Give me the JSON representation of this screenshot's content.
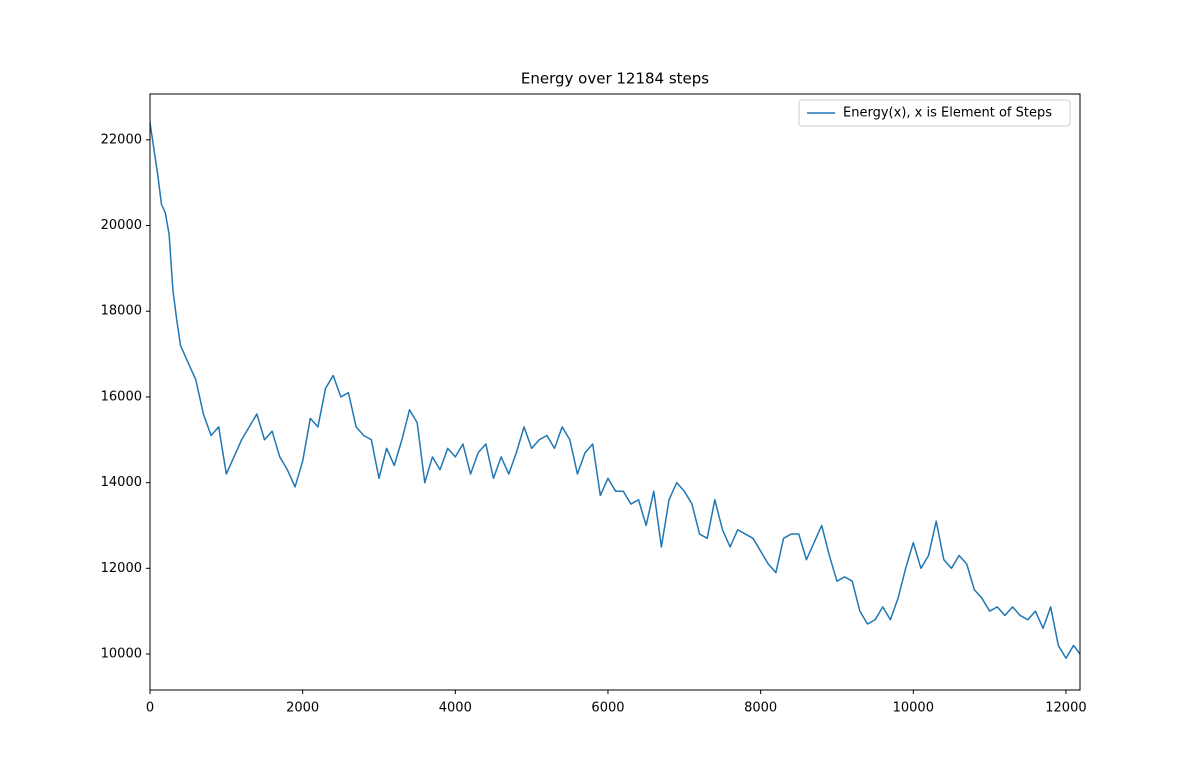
{
  "chart_data": {
    "type": "line",
    "title": "Energy over  12184 steps",
    "x": [
      0,
      100,
      150,
      200,
      250,
      300,
      350,
      400,
      500,
      600,
      700,
      800,
      900,
      1000,
      1100,
      1200,
      1300,
      1400,
      1500,
      1600,
      1700,
      1800,
      1900,
      2000,
      2100,
      2200,
      2300,
      2400,
      2500,
      2600,
      2700,
      2800,
      2900,
      3000,
      3100,
      3200,
      3300,
      3400,
      3500,
      3600,
      3700,
      3800,
      3900,
      4000,
      4100,
      4200,
      4300,
      4400,
      4500,
      4600,
      4700,
      4800,
      4900,
      5000,
      5100,
      5200,
      5300,
      5400,
      5500,
      5600,
      5700,
      5800,
      5900,
      6000,
      6100,
      6200,
      6300,
      6400,
      6500,
      6600,
      6700,
      6800,
      6900,
      7000,
      7100,
      7200,
      7300,
      7400,
      7500,
      7600,
      7700,
      7800,
      7900,
      8000,
      8100,
      8200,
      8300,
      8400,
      8500,
      8600,
      8700,
      8800,
      8900,
      9000,
      9100,
      9200,
      9300,
      9400,
      9500,
      9600,
      9700,
      9800,
      9900,
      10000,
      10100,
      10200,
      10300,
      10400,
      10500,
      10600,
      10700,
      10800,
      10900,
      11000,
      11100,
      11200,
      11300,
      11400,
      11500,
      11600,
      11700,
      11800,
      11900,
      12000,
      12100,
      12184
    ],
    "series": [
      {
        "name": "Energy(x), x is Element of Steps",
        "color": "#1f77b4",
        "values": [
          22400,
          21200,
          20500,
          20300,
          19800,
          18500,
          17800,
          17200,
          16800,
          16400,
          15600,
          15100,
          15300,
          14200,
          14600,
          15000,
          15300,
          15600,
          15000,
          15200,
          14600,
          14300,
          13900,
          14500,
          15500,
          15300,
          16200,
          16500,
          16000,
          16100,
          15300,
          15100,
          15000,
          14100,
          14800,
          14400,
          15000,
          15700,
          15400,
          14000,
          14600,
          14300,
          14800,
          14600,
          14900,
          14200,
          14700,
          14900,
          14100,
          14600,
          14200,
          14700,
          15300,
          14800,
          15000,
          15100,
          14800,
          15300,
          15000,
          14200,
          14700,
          14900,
          13700,
          14100,
          13800,
          13800,
          13500,
          13600,
          13000,
          13800,
          12500,
          13600,
          14000,
          13800,
          13500,
          12800,
          12700,
          13600,
          12900,
          12500,
          12900,
          12800,
          12700,
          12400,
          12100,
          11900,
          12700,
          12800,
          12800,
          12200,
          12600,
          13000,
          12300,
          11700,
          11800,
          11700,
          11000,
          10700,
          10800,
          11100,
          10800,
          11300,
          12000,
          12600,
          12000,
          12300,
          13100,
          12200,
          12000,
          12300,
          12100,
          11500,
          11300,
          11000,
          11100,
          10900,
          11100,
          10900,
          10800,
          11000,
          10600,
          11100,
          10200,
          9900,
          10200,
          10000
        ]
      }
    ],
    "xlim": [
      0,
      12184
    ],
    "ylim": [
      9160,
      23070
    ],
    "xticks": [
      0,
      2000,
      4000,
      6000,
      8000,
      10000,
      12000
    ],
    "yticks": [
      10000,
      12000,
      14000,
      16000,
      18000,
      20000,
      22000
    ],
    "legend": "upper right"
  }
}
